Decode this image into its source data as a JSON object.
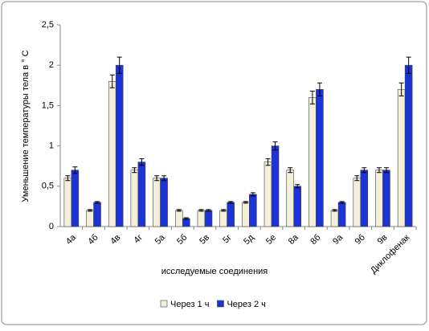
{
  "chart_data": {
    "type": "bar",
    "y_label": "Уменьшение температуры тела  в ° С",
    "x_label": "исследуемые соединения",
    "categories": [
      "4а",
      "4б",
      "4в",
      "4г",
      "5а",
      "5б",
      "5в",
      "5г",
      "5д",
      "5е",
      "8а",
      "8б",
      "9а",
      "9б",
      "9в",
      "Диклофенак"
    ],
    "series": [
      {
        "name": "Через 1 ч",
        "color": "#f3efd9",
        "values": [
          0.6,
          0.2,
          1.8,
          0.7,
          0.6,
          0.2,
          0.2,
          0.2,
          0.3,
          0.8,
          0.7,
          1.6,
          0.2,
          0.6,
          0.7,
          1.7
        ],
        "errors": [
          0.03,
          0.01,
          0.08,
          0.03,
          0.03,
          0.01,
          0.01,
          0.01,
          0.01,
          0.04,
          0.03,
          0.08,
          0.01,
          0.03,
          0.03,
          0.08
        ]
      },
      {
        "name": "Через 2 ч",
        "color": "#1c33d6",
        "values": [
          0.7,
          0.3,
          2.0,
          0.8,
          0.6,
          0.1,
          0.2,
          0.3,
          0.4,
          1.0,
          0.5,
          1.7,
          0.3,
          0.7,
          0.7,
          2.0
        ],
        "errors": [
          0.04,
          0.01,
          0.1,
          0.04,
          0.03,
          0.01,
          0.01,
          0.01,
          0.02,
          0.05,
          0.02,
          0.08,
          0.01,
          0.03,
          0.03,
          0.1
        ]
      }
    ],
    "ylim": [
      0,
      2.5
    ],
    "yticks": [
      0,
      {
        "value": 0.5,
        "label": "0,5"
      },
      1,
      {
        "value": 1.5,
        "label": "1,5"
      },
      2,
      {
        "value": 2.5,
        "label": "2,5"
      }
    ],
    "legend": "bottom"
  }
}
